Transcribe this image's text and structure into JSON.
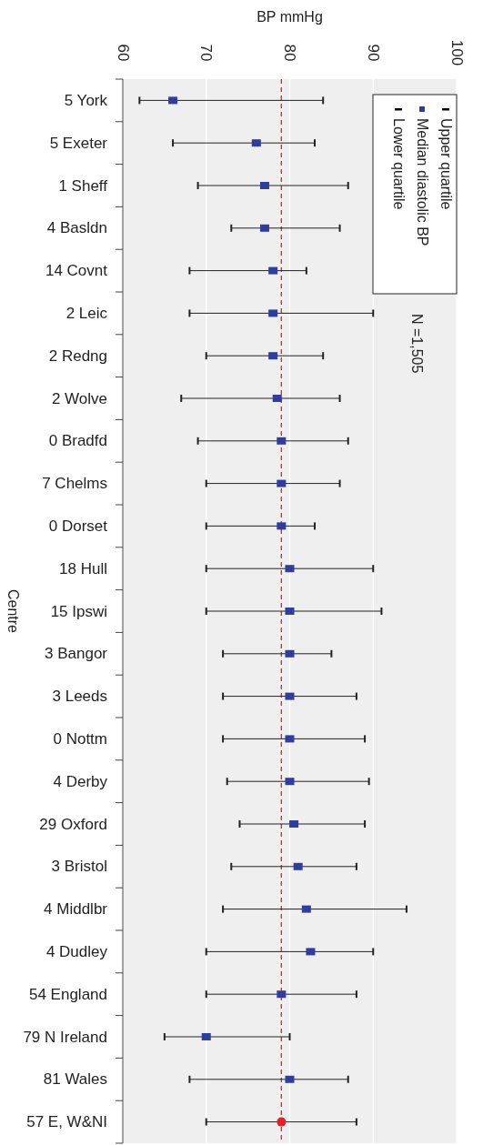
{
  "chart_data": {
    "type": "scatter",
    "orientation": "horizontal",
    "xlabel": "BP mmHg",
    "ylabel": "Centre",
    "categories": [
      "5 York",
      "5 Exeter",
      "1 Sheff",
      "4 Basldn",
      "14 Covnt",
      "2 Leic",
      "2 Redng",
      "2 Wolve",
      "0 Bradfd",
      "7 Chelms",
      "0 Dorset",
      "18 Hull",
      "15 Ipswi",
      "3 Bangor",
      "3 Leeds",
      "0 Nottm",
      "4 Derby",
      "29 Oxford",
      "3 Bristol",
      "4 Middlbr",
      "4 Dudley",
      "54 England",
      "79 N Ireland",
      "81 Wales",
      "57 E, W&NI"
    ],
    "series": [
      {
        "name": "Median diastolic BP",
        "color": "#2e3d9e",
        "marker": "square",
        "values": [
          66,
          76,
          77,
          77,
          78,
          78,
          78,
          78.5,
          79,
          79,
          79,
          80,
          80,
          80,
          80,
          80,
          80,
          80.5,
          81,
          82,
          82.5,
          79,
          70,
          80,
          null
        ],
        "errors": [
          [
            62,
            84
          ],
          [
            66,
            83
          ],
          [
            69,
            87
          ],
          [
            73,
            86
          ],
          [
            68,
            82
          ],
          [
            68,
            90
          ],
          [
            70,
            84
          ],
          [
            67,
            86
          ],
          [
            69,
            87
          ],
          [
            70,
            86
          ],
          [
            70,
            83
          ],
          [
            70,
            90
          ],
          [
            70,
            91
          ],
          [
            72,
            85
          ],
          [
            72,
            88
          ],
          [
            72,
            89
          ],
          [
            72.5,
            89.5
          ],
          [
            74,
            89
          ],
          [
            73,
            88
          ],
          [
            72,
            94
          ],
          [
            70,
            90
          ],
          [
            70,
            88
          ],
          [
            65,
            80
          ],
          [
            68,
            87
          ],
          null
        ]
      },
      {
        "color": "#ee1c25",
        "marker": "circle",
        "values": [
          null,
          null,
          null,
          null,
          null,
          null,
          null,
          null,
          null,
          null,
          null,
          null,
          null,
          null,
          null,
          null,
          null,
          null,
          null,
          null,
          null,
          null,
          null,
          null,
          79
        ],
        "errors": [
          null,
          null,
          null,
          null,
          null,
          null,
          null,
          null,
          null,
          null,
          null,
          null,
          null,
          null,
          null,
          null,
          null,
          null,
          null,
          null,
          null,
          null,
          null,
          null,
          [
            70,
            88
          ]
        ]
      }
    ],
    "xlim": [
      60,
      100
    ],
    "xticks": [
      60,
      70,
      80,
      90,
      100
    ],
    "grid": "x",
    "legend": "top right",
    "ref_lines": [
      {
        "axis": "x",
        "value": 79,
        "color": "#e8202a",
        "line_style": "dashed"
      }
    ],
    "annotations": [
      "Upper quartile",
      "Lower quartile",
      "N =1,505"
    ]
  }
}
